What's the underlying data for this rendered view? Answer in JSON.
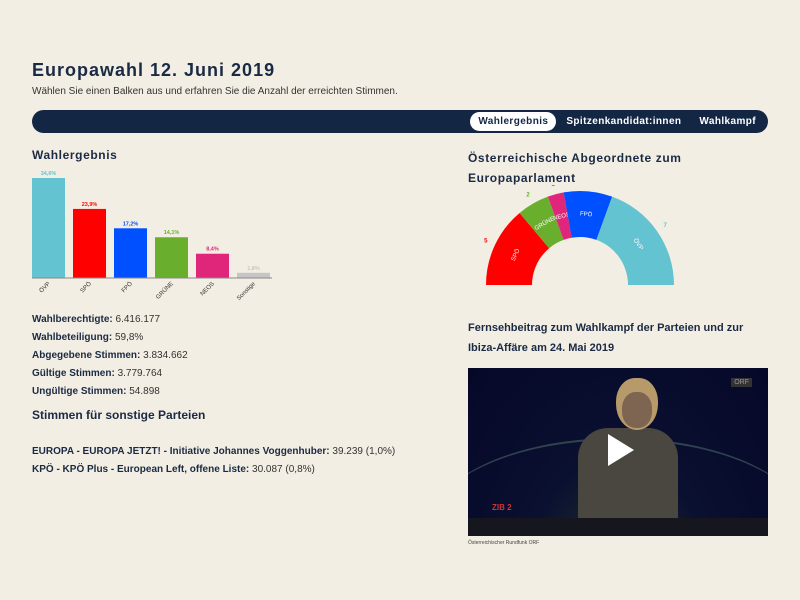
{
  "header": {
    "title": "Europawahl 12. Juni 2019",
    "subtitle": "Wählen Sie einen Balken aus und erfahren Sie die Anzahl der erreichten Stimmen."
  },
  "nav": {
    "tabs": [
      {
        "label": "Wahlergebnis",
        "active": true
      },
      {
        "label": "Spitzenkandidat:innen",
        "active": false
      },
      {
        "label": "Wahlkampf",
        "active": false
      }
    ]
  },
  "results": {
    "title": "Wahlergebnis"
  },
  "chart_data": [
    {
      "type": "bar",
      "title": "Wahlergebnis",
      "categories": [
        "ÖVP",
        "SPÖ",
        "FPÖ",
        "GRÜNE",
        "NEOS",
        "Sonstige"
      ],
      "values": [
        34.6,
        23.9,
        17.2,
        14.1,
        8.4,
        1.8
      ],
      "labels": [
        "34,6%",
        "23,9%",
        "17,2%",
        "14,1%",
        "8,4%",
        "1,8%"
      ],
      "colors": [
        "#63c3d1",
        "#ff0000",
        "#0050ff",
        "#6aae2e",
        "#e0267a",
        "#c6c6c6"
      ],
      "xlabel": "",
      "ylabel": "",
      "grid": false
    },
    {
      "type": "pie",
      "subtype": "semicircle",
      "title": "Österreichische Abgeordnete zum Europaparlament",
      "categories": [
        "SPÖ",
        "GRÜNE",
        "NEOS",
        "FPÖ",
        "ÖVP"
      ],
      "values": [
        5,
        2,
        1,
        3,
        7
      ],
      "colors": [
        "#ff0000",
        "#6aae2e",
        "#e0267a",
        "#0050ff",
        "#63c3d1"
      ]
    }
  ],
  "stats": [
    {
      "label": "Wahlberechtigte:",
      "value": "6.416.177"
    },
    {
      "label": "Wahlbeteiligung:",
      "value": "59,8%"
    },
    {
      "label": "Abgegebene Stimmen:",
      "value": "3.834.662"
    },
    {
      "label": "Gültige Stimmen:",
      "value": "3.779.764"
    },
    {
      "label": "Ungültige Stimmen:",
      "value": "54.898"
    }
  ],
  "others": {
    "title": "Stimmen für sonstige Parteien",
    "items": [
      {
        "label": "EUROPA - EUROPA JETZT! - Initiative Johannes Voggenhuber:",
        "value": "39.239 (1,0%)"
      },
      {
        "label": "KPÖ - KPÖ Plus - European Left, offene Liste:",
        "value": "30.087 (0,8%)"
      }
    ]
  },
  "parliament": {
    "title": "Österreichische Abgeordnete zum Europaparlament"
  },
  "video": {
    "title": "Fernsehbeitrag zum Wahlkampf der Parteien und zur Ibiza-Affäre am 24. Mai 2019",
    "caption": "Österreichischer Rundfunk ORF",
    "logo_left": "ZIB 2",
    "logo_right": "ORF"
  }
}
